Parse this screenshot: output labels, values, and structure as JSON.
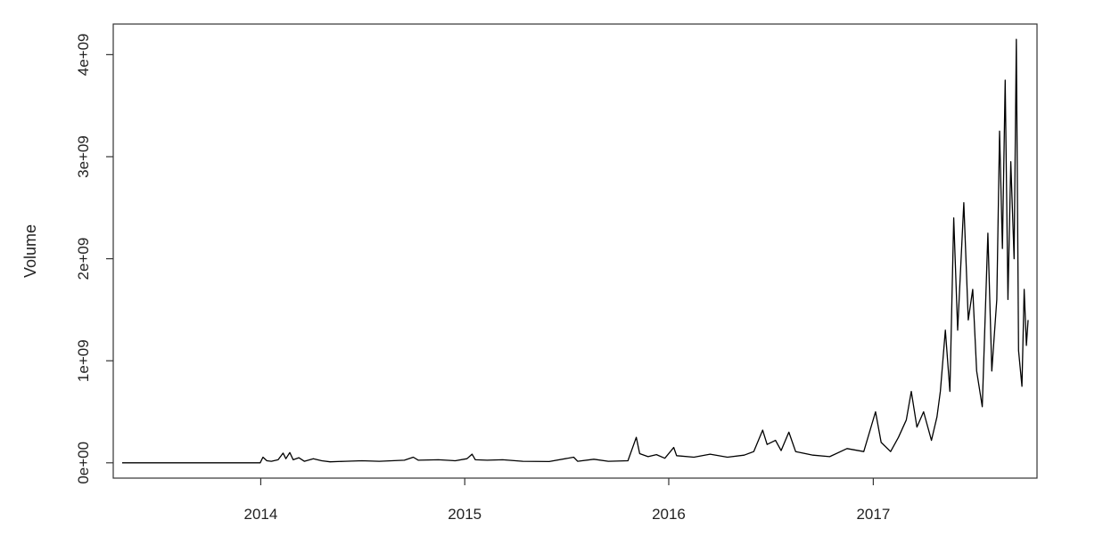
{
  "chart_data": {
    "type": "line",
    "title": "",
    "xlabel": "",
    "ylabel": "Volume",
    "grid": false,
    "legend": "none",
    "line_color": "#000000",
    "xlim": [
      "2013-04-28",
      "2017-10-05"
    ],
    "ylim": [
      -150000000,
      4300000000
    ],
    "x_ticks": [
      {
        "date": "2014-01-01",
        "label": "2014"
      },
      {
        "date": "2015-01-01",
        "label": "2015"
      },
      {
        "date": "2016-01-01",
        "label": "2016"
      },
      {
        "date": "2017-01-01",
        "label": "2017"
      }
    ],
    "y_ticks": [
      {
        "value": 0,
        "label": "0e+00"
      },
      {
        "value": 1000000000,
        "label": "1e+09"
      },
      {
        "value": 2000000000,
        "label": "2e+09"
      },
      {
        "value": 3000000000,
        "label": "3e+09"
      },
      {
        "value": 4000000000,
        "label": "4e+09"
      }
    ],
    "series": [
      {
        "points": [
          [
            "2013-04-28",
            0
          ],
          [
            "2013-12-31",
            0
          ],
          [
            "2014-01-05",
            55000000
          ],
          [
            "2014-01-12",
            20000000
          ],
          [
            "2014-01-20",
            15000000
          ],
          [
            "2014-02-01",
            30000000
          ],
          [
            "2014-02-10",
            95000000
          ],
          [
            "2014-02-15",
            40000000
          ],
          [
            "2014-02-22",
            100000000
          ],
          [
            "2014-02-28",
            30000000
          ],
          [
            "2014-03-10",
            50000000
          ],
          [
            "2014-03-20",
            15000000
          ],
          [
            "2014-04-05",
            40000000
          ],
          [
            "2014-04-20",
            20000000
          ],
          [
            "2014-05-05",
            10000000
          ],
          [
            "2014-06-01",
            15000000
          ],
          [
            "2014-07-01",
            20000000
          ],
          [
            "2014-08-01",
            15000000
          ],
          [
            "2014-09-15",
            25000000
          ],
          [
            "2014-10-01",
            55000000
          ],
          [
            "2014-10-10",
            25000000
          ],
          [
            "2014-11-15",
            30000000
          ],
          [
            "2014-12-15",
            20000000
          ],
          [
            "2015-01-05",
            40000000
          ],
          [
            "2015-01-14",
            85000000
          ],
          [
            "2015-01-20",
            30000000
          ],
          [
            "2015-02-10",
            25000000
          ],
          [
            "2015-03-10",
            30000000
          ],
          [
            "2015-04-15",
            15000000
          ],
          [
            "2015-06-01",
            12000000
          ],
          [
            "2015-07-15",
            55000000
          ],
          [
            "2015-07-22",
            15000000
          ],
          [
            "2015-08-20",
            35000000
          ],
          [
            "2015-09-15",
            15000000
          ],
          [
            "2015-10-20",
            20000000
          ],
          [
            "2015-11-04",
            250000000
          ],
          [
            "2015-11-10",
            90000000
          ],
          [
            "2015-11-25",
            60000000
          ],
          [
            "2015-12-10",
            80000000
          ],
          [
            "2015-12-25",
            45000000
          ],
          [
            "2016-01-10",
            150000000
          ],
          [
            "2016-01-15",
            70000000
          ],
          [
            "2016-02-15",
            55000000
          ],
          [
            "2016-03-15",
            85000000
          ],
          [
            "2016-04-15",
            55000000
          ],
          [
            "2016-05-15",
            75000000
          ],
          [
            "2016-06-01",
            110000000
          ],
          [
            "2016-06-17",
            320000000
          ],
          [
            "2016-06-25",
            180000000
          ],
          [
            "2016-07-10",
            220000000
          ],
          [
            "2016-07-20",
            120000000
          ],
          [
            "2016-08-03",
            300000000
          ],
          [
            "2016-08-15",
            110000000
          ],
          [
            "2016-09-15",
            75000000
          ],
          [
            "2016-10-15",
            60000000
          ],
          [
            "2016-11-15",
            140000000
          ],
          [
            "2016-12-15",
            110000000
          ],
          [
            "2017-01-05",
            500000000
          ],
          [
            "2017-01-15",
            200000000
          ],
          [
            "2017-02-01",
            110000000
          ],
          [
            "2017-02-15",
            250000000
          ],
          [
            "2017-03-01",
            420000000
          ],
          [
            "2017-03-10",
            700000000
          ],
          [
            "2017-03-20",
            350000000
          ],
          [
            "2017-04-01",
            500000000
          ],
          [
            "2017-04-15",
            220000000
          ],
          [
            "2017-04-25",
            450000000
          ],
          [
            "2017-05-01",
            700000000
          ],
          [
            "2017-05-10",
            1300000000
          ],
          [
            "2017-05-18",
            700000000
          ],
          [
            "2017-05-25",
            2400000000
          ],
          [
            "2017-06-01",
            1300000000
          ],
          [
            "2017-06-12",
            2550000000
          ],
          [
            "2017-06-20",
            1400000000
          ],
          [
            "2017-06-28",
            1700000000
          ],
          [
            "2017-07-05",
            900000000
          ],
          [
            "2017-07-15",
            550000000
          ],
          [
            "2017-07-25",
            2250000000
          ],
          [
            "2017-08-01",
            900000000
          ],
          [
            "2017-08-10",
            1600000000
          ],
          [
            "2017-08-15",
            3250000000
          ],
          [
            "2017-08-20",
            2100000000
          ],
          [
            "2017-08-25",
            3750000000
          ],
          [
            "2017-08-30",
            1600000000
          ],
          [
            "2017-09-04",
            2950000000
          ],
          [
            "2017-09-10",
            2000000000
          ],
          [
            "2017-09-14",
            4150000000
          ],
          [
            "2017-09-18",
            1100000000
          ],
          [
            "2017-09-24",
            750000000
          ],
          [
            "2017-09-28",
            1700000000
          ],
          [
            "2017-10-02",
            1150000000
          ],
          [
            "2017-10-05",
            1400000000
          ]
        ]
      }
    ]
  }
}
